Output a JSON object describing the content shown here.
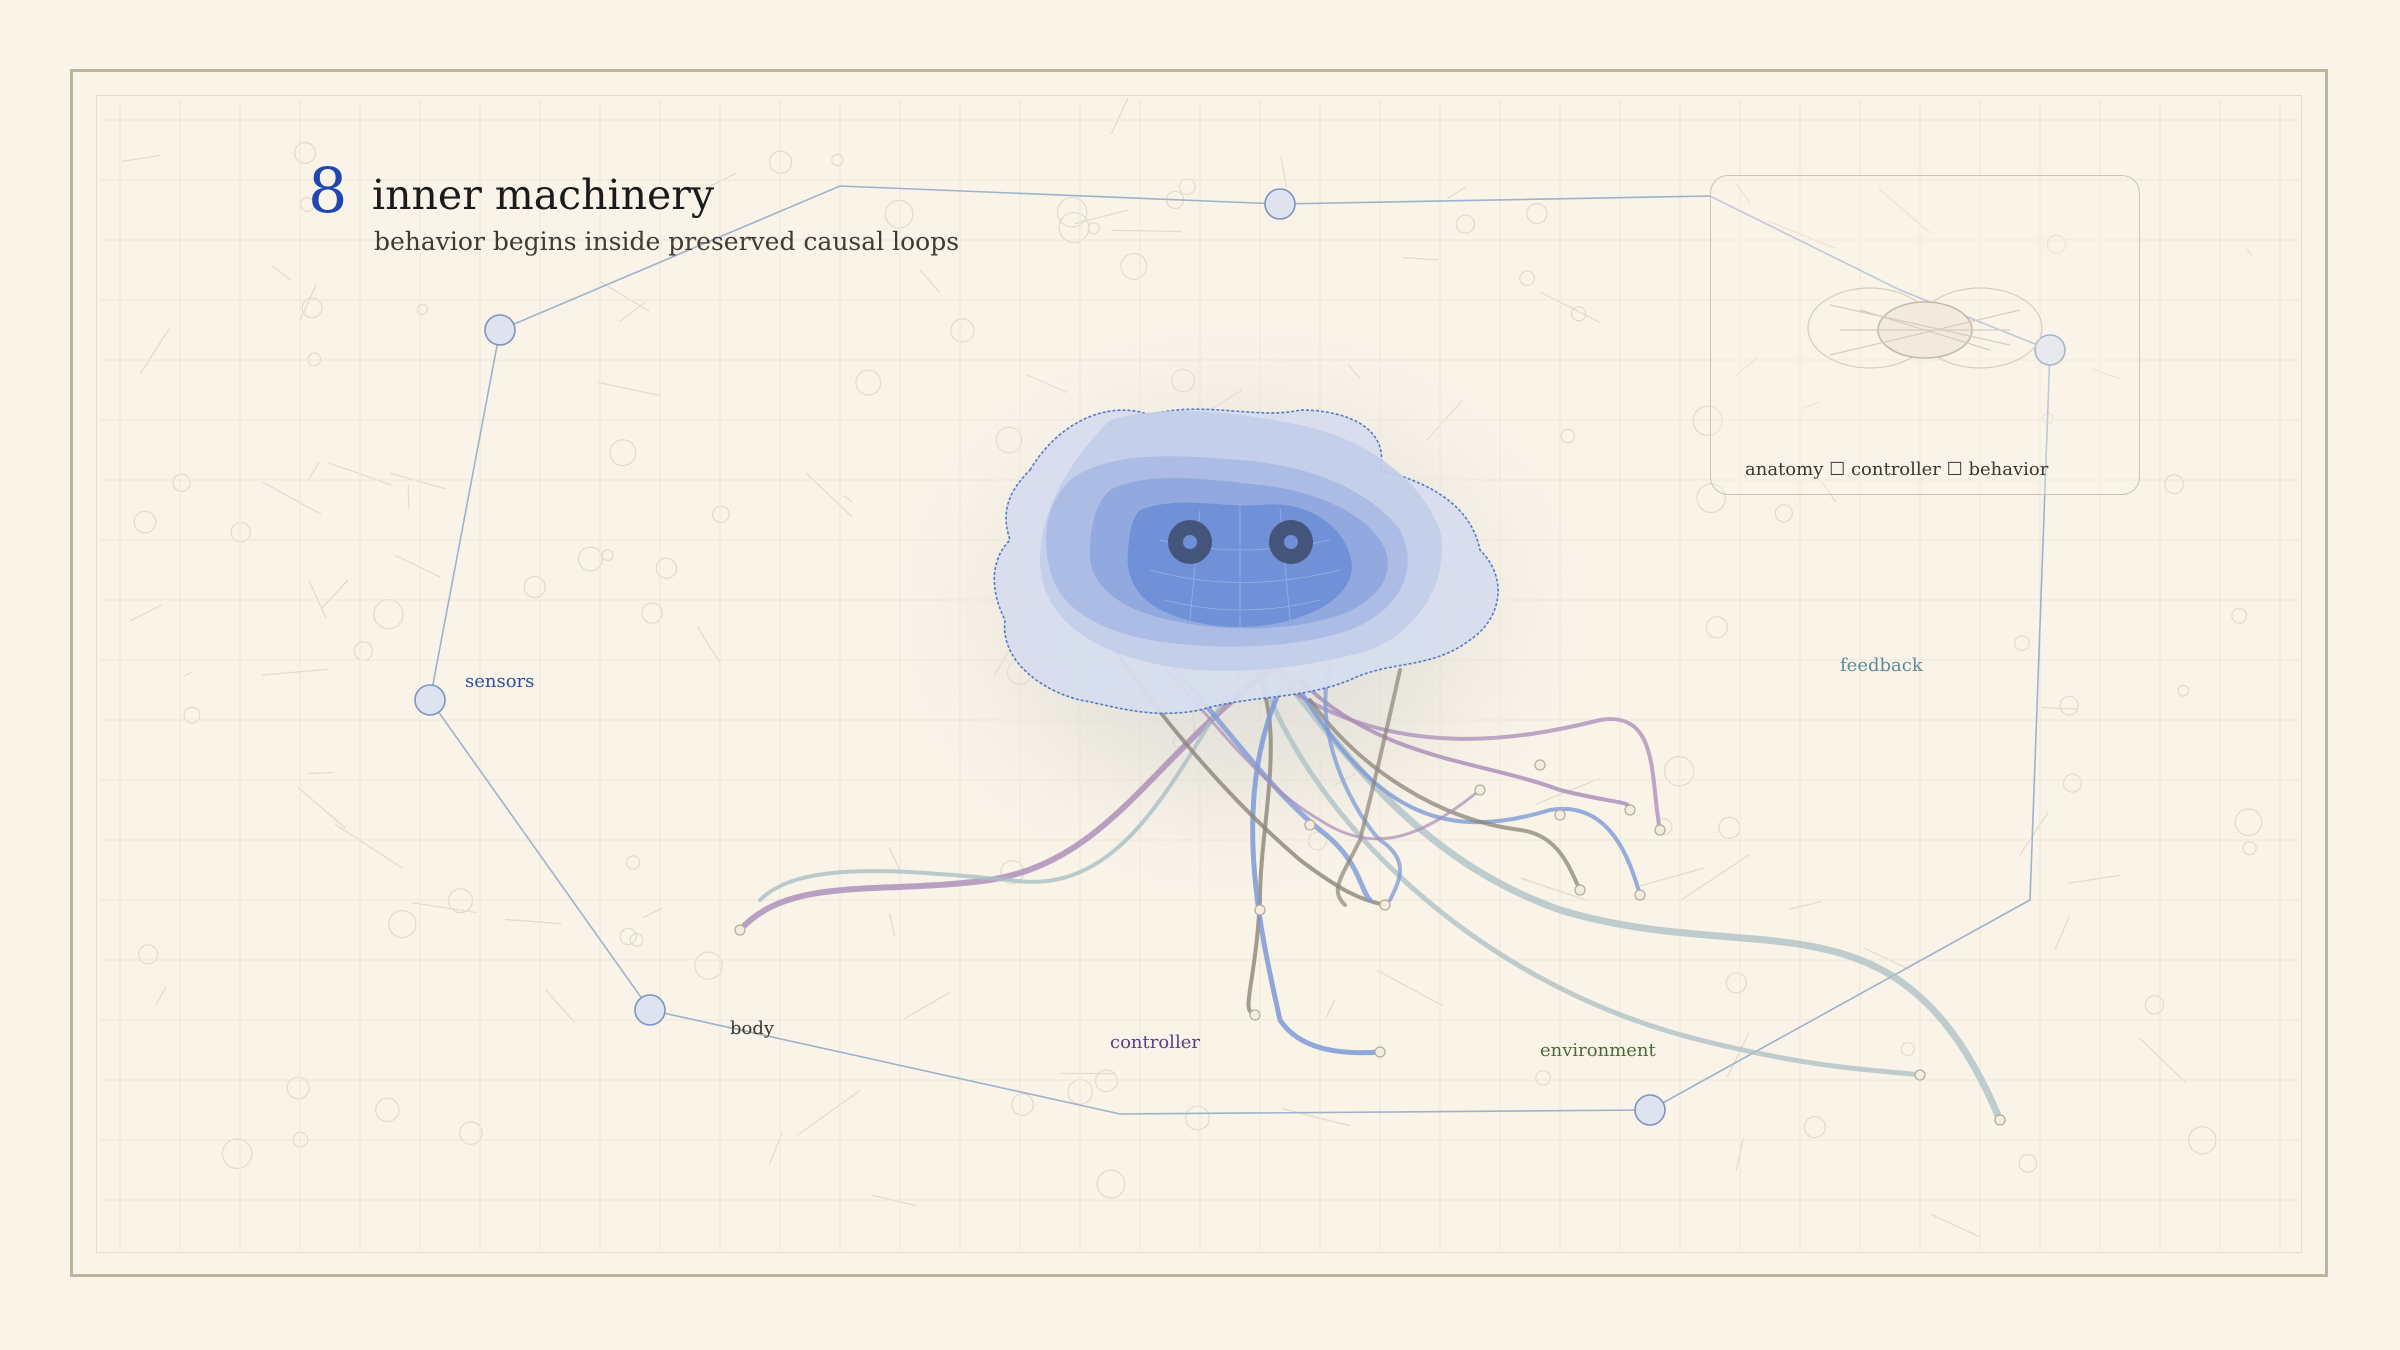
{
  "header": {
    "number": "8",
    "title": "inner machinery",
    "subtitle": "behavior begins inside preserved causal loops"
  },
  "diagram": {
    "labels": {
      "sensors": "sensors",
      "body": "body",
      "controller": "controller",
      "environment": "environment",
      "feedback": "feedback"
    },
    "inset_caption": "anatomy ☐ controller ☐ behavior"
  },
  "colors": {
    "background": "#f9f3e8",
    "frame": "#bfb39d",
    "accent_blue": "#1f47b0",
    "loop_line": "#9fb2cc",
    "node_fill": "#dde3ef",
    "sensors_label": "#2a4fa0",
    "body_label": "#3c362e",
    "controller_label": "#5b3d86",
    "environment_label": "#4b6a3c",
    "feedback_label": "#5b8a9c",
    "tentacle_purple": "#a98bb8",
    "tentacle_blue": "#7d9ad6",
    "tentacle_grey": "#8c8478",
    "tentacle_teal": "#a9bfc6"
  }
}
